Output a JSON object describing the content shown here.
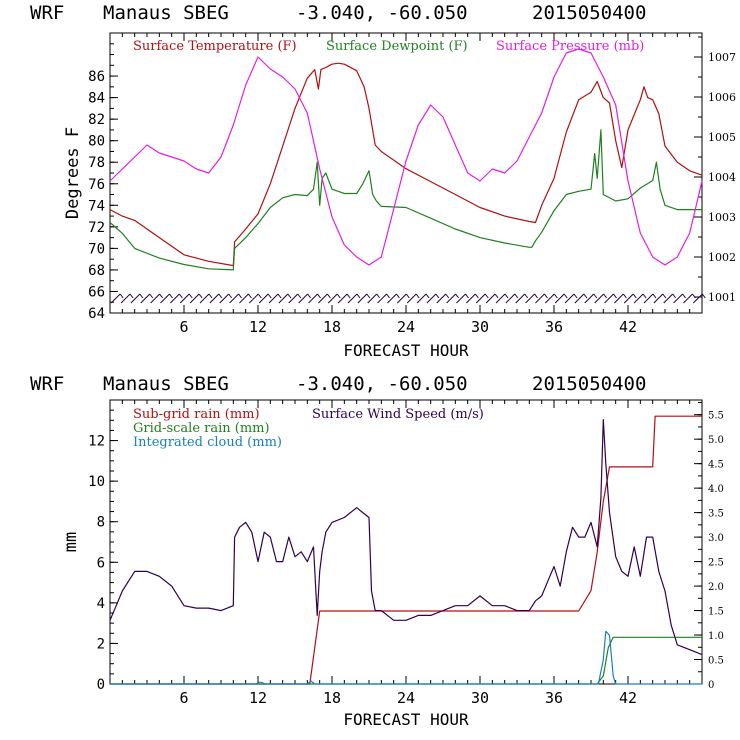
{
  "header": {
    "model": "WRF",
    "station": "Manaus SBEG",
    "coords": "-3.040, -60.050",
    "init": "2015050400"
  },
  "chart_data": [
    {
      "type": "line",
      "xlabel": "FORECAST HOUR",
      "ylabel": "Degrees F",
      "xlim": [
        0,
        48
      ],
      "ylim": [
        64,
        90
      ],
      "y2lim": [
        1000.6,
        1007.6
      ],
      "x_ticks": [
        6,
        12,
        18,
        24,
        30,
        36,
        42
      ],
      "y_ticks": [
        64,
        66,
        68,
        70,
        72,
        74,
        76,
        78,
        80,
        82,
        84,
        86
      ],
      "y2_ticks": [
        1001,
        1002,
        1003,
        1004,
        1005,
        1006,
        1007
      ],
      "legend": [
        "Surface Temperature (F)",
        "Surface Dewpoint (F)",
        "Surface Pressure (mb)"
      ],
      "colors": {
        "temp": "#b01010",
        "dew": "#208020",
        "press": "#e020e0",
        "wind": "#200040"
      },
      "series": [
        {
          "name": "Surface Temperature (F)",
          "axis": "left",
          "x": [
            0,
            1,
            2,
            4,
            6,
            8,
            10,
            10.1,
            11,
            12,
            13,
            14,
            15,
            16,
            16.6,
            16.9,
            17.1,
            17.5,
            18,
            18.5,
            19,
            20,
            20.6,
            21,
            21.5,
            22,
            24,
            26,
            28,
            30,
            32,
            34,
            34.5,
            35,
            36,
            37,
            38,
            39,
            39.5,
            40,
            40.5,
            41,
            41.5,
            42,
            43,
            43.3,
            43.6,
            44,
            44.5,
            45,
            46,
            47,
            48
          ],
          "y": [
            73.6,
            73,
            72.6,
            71,
            69.4,
            68.8,
            68.4,
            70.6,
            71.8,
            73.2,
            76,
            79.5,
            83,
            85.8,
            86.6,
            84.8,
            86.6,
            86.8,
            87.1,
            87.2,
            87.1,
            86.5,
            85,
            83,
            79.6,
            79,
            77.4,
            76.2,
            75,
            73.8,
            73,
            72.5,
            72.4,
            74,
            76.5,
            80.8,
            83.8,
            84.5,
            85.5,
            84,
            83.5,
            80,
            77.5,
            81,
            83.8,
            85,
            84,
            83.8,
            82.5,
            79.5,
            78,
            77.2,
            76.8
          ]
        },
        {
          "name": "Surface Dewpoint (F)",
          "axis": "left",
          "x": [
            0,
            1,
            2,
            4,
            6,
            8,
            10,
            10.1,
            11,
            12,
            13,
            14,
            15,
            16,
            16.5,
            16.8,
            17,
            17.2,
            17.5,
            18,
            18.5,
            19,
            20,
            20.5,
            21,
            21.3,
            21.6,
            22,
            24,
            26,
            28,
            30,
            32,
            34,
            34.2,
            34.5,
            35,
            36,
            37,
            38,
            39,
            39.3,
            39.5,
            39.8,
            40,
            41,
            42,
            43,
            44,
            44.3,
            44.6,
            45,
            46,
            47,
            48
          ],
          "y": [
            72.4,
            71.4,
            70,
            69.1,
            68.5,
            68.1,
            68,
            70,
            71,
            72.3,
            73.8,
            74.7,
            75,
            74.9,
            75.5,
            78,
            74,
            76.5,
            77,
            75.5,
            75.3,
            75.1,
            75.1,
            76,
            77.2,
            75,
            74.4,
            73.9,
            73.8,
            72.8,
            71.8,
            71,
            70.5,
            70.1,
            70.1,
            70.7,
            71.5,
            73.5,
            75,
            75.3,
            75.5,
            78.8,
            76.5,
            81,
            75,
            74.4,
            74.6,
            75.6,
            76.3,
            78,
            75.5,
            74,
            73.6,
            73.6,
            73.6
          ]
        },
        {
          "name": "Surface Pressure (mb)",
          "axis": "right",
          "x": [
            0,
            1,
            2,
            3,
            4,
            5,
            6,
            7,
            8,
            9,
            10,
            11,
            12,
            13,
            14,
            15,
            16,
            17,
            18,
            19,
            20,
            21,
            22,
            23,
            24,
            25,
            26,
            27,
            28,
            29,
            30,
            31,
            32,
            33,
            34,
            35,
            36,
            37,
            38,
            39,
            40,
            41,
            42,
            43,
            44,
            45,
            46,
            47,
            48
          ],
          "y": [
            1003.9,
            1004.2,
            1004.5,
            1004.8,
            1004.6,
            1004.5,
            1004.4,
            1004.2,
            1004.1,
            1004.5,
            1005.3,
            1006.3,
            1007,
            1006.7,
            1006.5,
            1006.2,
            1005.6,
            1004.2,
            1003.0,
            1002.3,
            1002.0,
            1001.8,
            1002.0,
            1003.2,
            1004.4,
            1005.3,
            1005.8,
            1005.5,
            1004.8,
            1004.1,
            1003.9,
            1004.2,
            1004.1,
            1004.4,
            1005.0,
            1005.6,
            1006.5,
            1007.1,
            1007.2,
            1007.1,
            1006.5,
            1005.8,
            1003.9,
            1002.6,
            1002.0,
            1001.8,
            1002.0,
            1002.6,
            1003.9
          ]
        }
      ],
      "wind_barbs": {
        "x": [
          0.5,
          1.3,
          2.1,
          2.9,
          3.7,
          4.5,
          5.3,
          6.1,
          6.9,
          7.7,
          8.5,
          9.3,
          10.1,
          10.9,
          11.7,
          12.5,
          13.3,
          14.1,
          14.9,
          15.7,
          16.5,
          17.3,
          18.1,
          18.9,
          19.7,
          20.5,
          21.3,
          22.1,
          22.9,
          23.7,
          24.5,
          25.3,
          26.1,
          26.9,
          27.7,
          28.5,
          29.3,
          30.1,
          30.9,
          31.7,
          32.5,
          33.3,
          34.1,
          34.9,
          35.7,
          36.5,
          37.3,
          38.1,
          38.9,
          39.7,
          40.5,
          41.3,
          42.1,
          42.9,
          43.7,
          44.5,
          45.3,
          46.1,
          46.9,
          47.7
        ],
        "base": 65.3
      }
    },
    {
      "type": "line",
      "xlabel": "FORECAST HOUR",
      "ylabel": "mm",
      "xlim": [
        0,
        48
      ],
      "ylim": [
        0,
        14
      ],
      "y2lim": [
        0,
        5.8
      ],
      "x_ticks": [
        6,
        12,
        18,
        24,
        30,
        36,
        42
      ],
      "y_ticks": [
        0,
        2,
        4,
        6,
        8,
        10,
        12
      ],
      "y2_ticks": [
        "0",
        "0.5",
        "1.0",
        "1.5",
        "2.0",
        "2.5",
        "3.0",
        "3.5",
        "4.0",
        "4.5",
        "5.0",
        "5.5"
      ],
      "legend": [
        "Sub-grid rain (mm)",
        "Grid-scale rain (mm)",
        "Integrated cloud (mm)",
        "Surface Wind Speed (m/s)"
      ],
      "colors": {
        "subgrid": "#b01010",
        "grid": "#208020",
        "cloud": "#1880c0",
        "wind": "#300050"
      },
      "series": [
        {
          "name": "Sub-grid rain (mm)",
          "axis": "left",
          "x": [
            0,
            16.2,
            17,
            35,
            38,
            39,
            39.5,
            40,
            40.5,
            41,
            41.5,
            42,
            43,
            44,
            44.2,
            46,
            48
          ],
          "y": [
            0,
            0,
            3.6,
            3.6,
            3.6,
            4.6,
            6.5,
            9,
            10.7,
            10.7,
            10.7,
            10.7,
            10.7,
            10.7,
            13.2,
            13.2,
            13.2
          ]
        },
        {
          "name": "Grid-scale rain (mm)",
          "axis": "left",
          "x": [
            0,
            39.5,
            40,
            40.4,
            40.8,
            44,
            48
          ],
          "y": [
            0,
            0,
            0.4,
            1.8,
            2.3,
            2.3,
            2.3
          ]
        },
        {
          "name": "Integrated cloud (mm)",
          "axis": "left",
          "x": [
            0,
            11.8,
            12.2,
            12.6,
            16,
            16.3,
            16.6,
            39.6,
            40,
            40.2,
            40.5,
            40.8,
            41,
            48
          ],
          "y": [
            0,
            0,
            0.1,
            0,
            0,
            0.15,
            0,
            0,
            1.2,
            2.6,
            2.4,
            0.4,
            0,
            0
          ]
        },
        {
          "name": "Surface Wind Speed (m/s)",
          "axis": "right",
          "x": [
            0,
            0.5,
            1,
            1.5,
            2,
            3,
            4,
            5,
            6,
            7,
            8,
            9,
            10,
            10.1,
            10.5,
            11,
            11.5,
            12,
            12.5,
            13,
            13.5,
            14,
            14.5,
            15,
            15.5,
            16,
            16.5,
            16.8,
            17,
            17.2,
            17.5,
            18,
            19,
            20,
            20.5,
            21,
            21.2,
            21.5,
            22,
            23,
            24,
            25,
            26,
            27,
            28,
            29,
            30,
            31,
            32,
            33,
            34,
            34.5,
            35,
            35.5,
            36,
            36.5,
            37,
            37.5,
            38,
            38.5,
            39,
            39.5,
            39.8,
            40,
            40.2,
            40.5,
            41,
            41.5,
            42,
            42.5,
            43,
            43.5,
            44,
            44.5,
            45,
            45.5,
            46,
            47,
            48
          ],
          "y": [
            1.3,
            1.6,
            1.9,
            2.1,
            2.3,
            2.3,
            2.2,
            2.0,
            1.6,
            1.55,
            1.55,
            1.5,
            1.6,
            3.0,
            3.2,
            3.3,
            3.1,
            2.5,
            3.1,
            3.0,
            2.5,
            2.5,
            3.0,
            2.6,
            2.7,
            2.5,
            2.8,
            1.4,
            2.3,
            2.7,
            3.1,
            3.3,
            3.4,
            3.6,
            3.5,
            3.4,
            1.9,
            1.5,
            1.5,
            1.3,
            1.3,
            1.4,
            1.4,
            1.5,
            1.6,
            1.6,
            1.8,
            1.6,
            1.6,
            1.5,
            1.5,
            1.7,
            1.8,
            2.1,
            2.4,
            2.0,
            2.7,
            3.2,
            3.0,
            3.0,
            3.3,
            2.8,
            3.8,
            5.4,
            4.5,
            3.5,
            2.6,
            2.3,
            2.2,
            2.8,
            2.2,
            3.0,
            3.0,
            2.3,
            1.9,
            1.2,
            0.8,
            0.7,
            0.6
          ]
        }
      ]
    }
  ]
}
